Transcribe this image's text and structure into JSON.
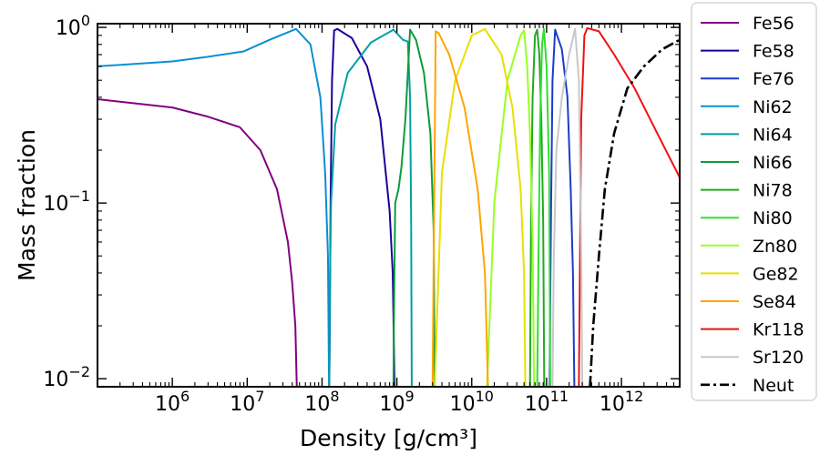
{
  "chart_data": {
    "type": "line",
    "title": "",
    "xlabel": "Density [g/cm³]",
    "ylabel": "Mass fraction",
    "xscale": "log",
    "yscale": "log",
    "xlim": [
      100000,
      6000000000000
    ],
    "ylim": [
      0.009,
      1.05
    ],
    "xtick_labels": [
      "10^6",
      "10^7",
      "10^8",
      "10^9",
      "10^10",
      "10^11",
      "10^12"
    ],
    "ytick_labels": [
      "10^-2",
      "10^-1",
      "10^0"
    ],
    "legend_position": "right, outside plot",
    "series": [
      {
        "name": "Fe56",
        "color": "#800080",
        "style": "solid",
        "points": [
          [
            100000,
            0.39
          ],
          [
            1000000,
            0.35
          ],
          [
            3000000,
            0.31
          ],
          [
            8000000,
            0.27
          ],
          [
            15000000,
            0.2
          ],
          [
            25000000,
            0.12
          ],
          [
            35000000,
            0.06
          ],
          [
            40000000,
            0.035
          ],
          [
            44000000,
            0.02
          ],
          [
            46000000,
            0.009
          ]
        ]
      },
      {
        "name": "Fe58",
        "color": "#1c0099",
        "style": "solid",
        "points": [
          [
            125000000,
            0.009
          ],
          [
            127000000,
            0.02
          ],
          [
            130000000,
            0.1
          ],
          [
            136000000,
            0.5
          ],
          [
            145000000,
            0.96
          ],
          [
            160000000,
            0.98
          ],
          [
            250000000,
            0.87
          ],
          [
            400000000,
            0.6
          ],
          [
            600000000,
            0.3
          ],
          [
            800000000,
            0.09
          ],
          [
            880000000,
            0.04
          ],
          [
            930000000,
            0.009
          ]
        ]
      },
      {
        "name": "Fe76",
        "color": "#1b3cc8",
        "style": "solid",
        "points": [
          [
            110000000000,
            0.009
          ],
          [
            112000000000,
            0.03
          ],
          [
            115000000000,
            0.1
          ],
          [
            120000000000,
            0.5
          ],
          [
            130000000000,
            0.97
          ],
          [
            160000000000,
            0.75
          ],
          [
            190000000000,
            0.4
          ],
          [
            210000000000,
            0.12
          ],
          [
            225000000000,
            0.04
          ],
          [
            235000000000,
            0.009
          ]
        ]
      },
      {
        "name": "Ni62",
        "color": "#0a8fd4",
        "style": "solid",
        "points": [
          [
            100000,
            0.6
          ],
          [
            1000000,
            0.64
          ],
          [
            3000000,
            0.68
          ],
          [
            9000000,
            0.73
          ],
          [
            20000000,
            0.85
          ],
          [
            45000000,
            0.98
          ],
          [
            70000000,
            0.8
          ],
          [
            95000000,
            0.4
          ],
          [
            110000000,
            0.15
          ],
          [
            120000000,
            0.05
          ],
          [
            124000000,
            0.009
          ]
        ]
      },
      {
        "name": "Ni64",
        "color": "#00a0a0",
        "style": "solid",
        "points": [
          [
            125000000,
            0.009
          ],
          [
            127000000,
            0.03
          ],
          [
            132000000,
            0.1
          ],
          [
            150000000,
            0.28
          ],
          [
            220000000,
            0.55
          ],
          [
            450000000,
            0.82
          ],
          [
            900000000,
            0.97
          ],
          [
            1200000000,
            0.85
          ],
          [
            1400000000,
            0.83
          ],
          [
            1500000000,
            0.4
          ],
          [
            1550000000,
            0.08
          ],
          [
            1580000000,
            0.009
          ]
        ]
      },
      {
        "name": "Ni66",
        "color": "#0c9a3c",
        "style": "solid",
        "points": [
          [
            900000000,
            0.009
          ],
          [
            910000000,
            0.02
          ],
          [
            950000000,
            0.1
          ],
          [
            1050000000,
            0.12
          ],
          [
            1150000000,
            0.16
          ],
          [
            1300000000,
            0.3
          ],
          [
            1500000000,
            0.97
          ],
          [
            1800000000,
            0.85
          ],
          [
            2300000000,
            0.55
          ],
          [
            2800000000,
            0.25
          ],
          [
            3100000000,
            0.07
          ],
          [
            3200000000,
            0.009
          ]
        ]
      },
      {
        "name": "Ni78",
        "color": "#22aa22",
        "style": "solid",
        "points": [
          [
            60000000000,
            0.009
          ],
          [
            62000000000,
            0.08
          ],
          [
            65000000000,
            0.4
          ],
          [
            70000000000,
            0.9
          ],
          [
            75000000000,
            0.97
          ],
          [
            80000000000,
            0.7
          ],
          [
            85000000000,
            0.3
          ],
          [
            90000000000,
            0.08
          ],
          [
            93000000000,
            0.009
          ]
        ]
      },
      {
        "name": "Ni80",
        "color": "#33dd33",
        "style": "solid",
        "points": [
          [
            75000000000,
            0.009
          ],
          [
            78000000000,
            0.05
          ],
          [
            82000000000,
            0.3
          ],
          [
            87000000000,
            0.8
          ],
          [
            92000000000,
            0.98
          ],
          [
            100000000000,
            0.6
          ],
          [
            108000000000,
            0.15
          ],
          [
            112000000000,
            0.009
          ]
        ]
      },
      {
        "name": "Zn80",
        "color": "#99ff22",
        "style": "solid",
        "points": [
          [
            16000000000,
            0.009
          ],
          [
            20000000000,
            0.1
          ],
          [
            30000000000,
            0.5
          ],
          [
            45000000000,
            0.9
          ],
          [
            50000000000,
            0.96
          ],
          [
            55000000000,
            0.6
          ],
          [
            60000000000,
            0.25
          ],
          [
            65000000000,
            0.06
          ],
          [
            68000000000,
            0.009
          ]
        ]
      },
      {
        "name": "Ge82",
        "color": "#e8e000",
        "style": "solid",
        "points": [
          [
            3200000000,
            0.009
          ],
          [
            4000000000,
            0.15
          ],
          [
            6000000000,
            0.5
          ],
          [
            10000000000,
            0.9
          ],
          [
            15000000000,
            0.98
          ],
          [
            25000000000,
            0.7
          ],
          [
            35000000000,
            0.35
          ],
          [
            45000000000,
            0.12
          ],
          [
            50000000000,
            0.04
          ],
          [
            52000000000,
            0.009
          ]
        ]
      },
      {
        "name": "Se84",
        "color": "#ffa500",
        "style": "solid",
        "points": [
          [
            3000000000,
            0.009
          ],
          [
            3100000000,
            0.05
          ],
          [
            3300000000,
            0.95
          ],
          [
            3600000000,
            0.93
          ],
          [
            5000000000,
            0.7
          ],
          [
            8000000000,
            0.35
          ],
          [
            12000000000,
            0.12
          ],
          [
            15000000000,
            0.04
          ],
          [
            16500000000,
            0.009
          ]
        ]
      },
      {
        "name": "Kr118",
        "color": "#ee1111",
        "style": "solid",
        "points": [
          [
            270000000000,
            0.009
          ],
          [
            290000000000,
            0.3
          ],
          [
            320000000000,
            0.9
          ],
          [
            350000000000,
            0.99
          ],
          [
            500000000000,
            0.95
          ],
          [
            800000000000,
            0.7
          ],
          [
            1500000000000,
            0.45
          ],
          [
            3000000000000,
            0.25
          ],
          [
            6000000000000,
            0.14
          ]
        ]
      },
      {
        "name": "Sr120",
        "color": "#c8c8c8",
        "style": "solid",
        "points": [
          [
            120000000000,
            0.009
          ],
          [
            125000000000,
            0.05
          ],
          [
            135000000000,
            0.2
          ],
          [
            160000000000,
            0.4
          ],
          [
            200000000000,
            0.7
          ],
          [
            240000000000,
            0.98
          ],
          [
            270000000000,
            0.5
          ],
          [
            290000000000,
            0.05
          ],
          [
            300000000000,
            0.009
          ]
        ]
      },
      {
        "name": "Neut",
        "color": "#000000",
        "style": "dashdot",
        "points": [
          [
            380000000000,
            0.009
          ],
          [
            420000000000,
            0.02
          ],
          [
            500000000000,
            0.05
          ],
          [
            600000000000,
            0.12
          ],
          [
            800000000000,
            0.25
          ],
          [
            1200000000000,
            0.45
          ],
          [
            2000000000000,
            0.6
          ],
          [
            3500000000000,
            0.75
          ],
          [
            6000000000000,
            0.85
          ]
        ]
      }
    ]
  }
}
